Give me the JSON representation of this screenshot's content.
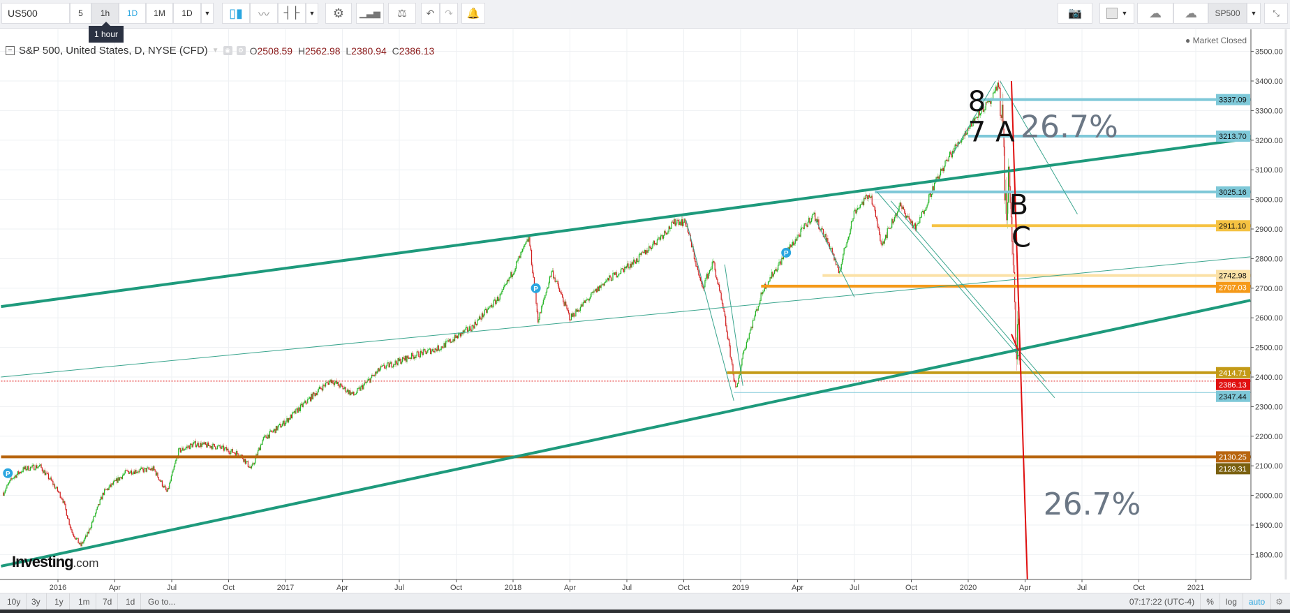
{
  "toolbar": {
    "symbol": "US500",
    "intervals": [
      "5",
      "1h",
      "1D",
      "1M",
      "1D"
    ],
    "tooltip": "1 hour",
    "saved_chart": "SP500",
    "icons": [
      "candles-icon",
      "line-chart-icon",
      "bars-icon",
      "gear-icon",
      "indicators-icon",
      "scale-icon",
      "undo-icon",
      "redo-icon",
      "alert-icon",
      "camera-icon",
      "color-swatch-icon",
      "cloud-download-icon",
      "cloud-upload-icon",
      "fullscreen-icon"
    ]
  },
  "header": {
    "title": "S&P 500, United States, D, NYSE (CFD)",
    "open_label": "O",
    "open": "2508.59",
    "high_label": "H",
    "high": "2562.98",
    "low_label": "L",
    "low": "2380.94",
    "close_label": "C",
    "close": "2386.13",
    "market_status": "Market Closed"
  },
  "logo": {
    "main": "Investing",
    "suffix": ".com"
  },
  "bottombar": {
    "ranges": [
      "10y",
      "3y",
      "1y",
      "1m",
      "7d",
      "1d",
      "Go to..."
    ],
    "time": "07:17:22 (UTC-4)",
    "percent": "%",
    "log": "log",
    "auto": "auto"
  },
  "colors": {
    "up": "#22b322",
    "down": "#d11f1f",
    "channel": "#1e9a7c",
    "thin": "#3aa58e",
    "red_line": "#e01010",
    "accent": "#2aa6e0"
  },
  "chart_data": {
    "type": "line",
    "title": "S&P 500, United States, D, NYSE (CFD)",
    "ylim": [
      1716,
      3575
    ],
    "xlim": [
      2015.75,
      2021.24
    ],
    "y_ticks": [
      1800,
      1900,
      2000,
      2100,
      2200,
      2300,
      2400,
      2500,
      2600,
      2700,
      2800,
      2900,
      3000,
      3100,
      3200,
      3300,
      3400,
      3500
    ],
    "x_start": 2016,
    "x_step": 0.25,
    "x_tick_labels": [
      "2016",
      "Apr",
      "Jul",
      "Oct",
      "2017",
      "Apr",
      "Jul",
      "Oct",
      "2018",
      "Apr",
      "Jul",
      "Oct",
      "2019",
      "Apr",
      "Jul",
      "Oct",
      "2020",
      "Apr",
      "Jul",
      "Oct",
      "2021"
    ],
    "price_path": [
      [
        2015.76,
        2010
      ],
      [
        2015.8,
        2060
      ],
      [
        2015.85,
        2090
      ],
      [
        2015.92,
        2100
      ],
      [
        2015.97,
        2050
      ],
      [
        2016.02,
        1990
      ],
      [
        2016.06,
        1880
      ],
      [
        2016.1,
        1830
      ],
      [
        2016.13,
        1870
      ],
      [
        2016.2,
        2010
      ],
      [
        2016.3,
        2080
      ],
      [
        2016.42,
        2090
      ],
      [
        2016.48,
        2010
      ],
      [
        2016.53,
        2150
      ],
      [
        2016.6,
        2175
      ],
      [
        2016.7,
        2165
      ],
      [
        2016.8,
        2140
      ],
      [
        2016.85,
        2090
      ],
      [
        2016.9,
        2190
      ],
      [
        2017.0,
        2250
      ],
      [
        2017.15,
        2360
      ],
      [
        2017.2,
        2390
      ],
      [
        2017.3,
        2340
      ],
      [
        2017.42,
        2430
      ],
      [
        2017.55,
        2470
      ],
      [
        2017.68,
        2500
      ],
      [
        2017.82,
        2570
      ],
      [
        2017.95,
        2680
      ],
      [
        2018.07,
        2870
      ],
      [
        2018.11,
        2590
      ],
      [
        2018.17,
        2760
      ],
      [
        2018.25,
        2600
      ],
      [
        2018.4,
        2720
      ],
      [
        2018.55,
        2800
      ],
      [
        2018.72,
        2930
      ],
      [
        2018.76,
        2920
      ],
      [
        2018.83,
        2700
      ],
      [
        2018.88,
        2790
      ],
      [
        2018.93,
        2600
      ],
      [
        2018.98,
        2350
      ],
      [
        2019.01,
        2480
      ],
      [
        2019.1,
        2700
      ],
      [
        2019.2,
        2820
      ],
      [
        2019.32,
        2950
      ],
      [
        2019.4,
        2830
      ],
      [
        2019.43,
        2750
      ],
      [
        2019.5,
        2960
      ],
      [
        2019.57,
        3020
      ],
      [
        2019.62,
        2850
      ],
      [
        2019.7,
        2980
      ],
      [
        2019.77,
        2900
      ],
      [
        2019.85,
        3050
      ],
      [
        2019.92,
        3150
      ],
      [
        2020.0,
        3240
      ],
      [
        2020.05,
        3300
      ],
      [
        2020.1,
        3330
      ],
      [
        2020.135,
        3390
      ],
      [
        2020.15,
        3300
      ],
      [
        2020.16,
        3050
      ],
      [
        2020.17,
        2960
      ],
      [
        2020.18,
        3100
      ],
      [
        2020.19,
        2870
      ],
      [
        2020.2,
        2720
      ],
      [
        2020.21,
        2480
      ],
      [
        2020.22,
        2600
      ],
      [
        2020.225,
        2386
      ]
    ],
    "levels": [
      {
        "price": 3337.09,
        "label": "3337.09",
        "from": 2020.04,
        "color": "#7ec8d8",
        "text": "#111"
      },
      {
        "price": 3213.7,
        "label": "3213.70",
        "from": 2020.0,
        "color": "#7ec8d8",
        "text": "#111"
      },
      {
        "price": 3025.16,
        "label": "3025.16",
        "from": 2019.59,
        "color": "#7ec8d8",
        "text": "#111"
      },
      {
        "price": 2911.1,
        "label": "2911.10",
        "from": 2019.84,
        "color": "#f5c242",
        "text": "#111"
      },
      {
        "price": 2742.98,
        "label": "2742.98",
        "from": 2019.36,
        "color": "#fbe1a6",
        "text": "#111"
      },
      {
        "price": 2707.03,
        "label": "2707.03",
        "from": 2019.09,
        "color": "#f59a1a",
        "text": "#fff"
      },
      {
        "price": 2414.71,
        "label": "2414.71",
        "from": 2018.94,
        "color": "#c39a17",
        "text": "#fff"
      },
      {
        "price": 2347.44,
        "label": "2347.44",
        "from": 2018.97,
        "color": "#7ec8d8",
        "text": "#111",
        "thin": true
      },
      {
        "price": 2130.25,
        "label": "2130.25",
        "from": 2015.75,
        "color": "#b8650f",
        "text": "#fff"
      },
      {
        "price": 2129.31,
        "label": "2129.31",
        "from": 2015.75,
        "color": "#7a6010",
        "text": "#fff",
        "nolinerender": true
      },
      {
        "price": 2386.13,
        "label": "2386.13",
        "from": 2015.75,
        "color": "#e01010",
        "text": "#fff",
        "dotted": true
      }
    ],
    "trendlines": [
      {
        "p1": [
          2015.75,
          2638
        ],
        "p2": [
          2021.24,
          3206
        ],
        "style": "thick"
      },
      {
        "p1": [
          2015.75,
          1761
        ],
        "p2": [
          2021.24,
          2659
        ],
        "style": "thick"
      },
      {
        "p1": [
          2015.75,
          2400
        ],
        "p2": [
          2021.24,
          2806
        ],
        "style": "thin"
      },
      {
        "p1": [
          2020.14,
          3400
        ],
        "p2": [
          2020.48,
          2950
        ],
        "style": "thin"
      },
      {
        "p1": [
          2019.93,
          3150
        ],
        "p2": [
          2020.12,
          3400
        ],
        "style": "thin"
      },
      {
        "p1": [
          2019.6,
          3025
        ],
        "p2": [
          2020.38,
          2330
        ],
        "style": "thin"
      },
      {
        "p1": [
          2019.66,
          2995
        ],
        "p2": [
          2020.34,
          2385
        ],
        "style": "thin"
      },
      {
        "p1": [
          2018.76,
          2930
        ],
        "p2": [
          2018.97,
          2320
        ],
        "style": "thin"
      },
      {
        "p1": [
          2018.93,
          2780
        ],
        "p2": [
          2019.01,
          2370
        ],
        "style": "thin"
      },
      {
        "p1": [
          2019.33,
          2930
        ],
        "p2": [
          2019.5,
          2670
        ],
        "style": "thin"
      },
      {
        "p1": [
          2020.19,
          3400
        ],
        "p2": [
          2020.26,
          1716
        ],
        "style": "red"
      },
      {
        "p1": [
          2020.19,
          2545
        ],
        "p2": [
          2020.22,
          2490
        ],
        "style": "red"
      }
    ],
    "annotations": [
      {
        "text": "8",
        "t": 2020.085,
        "p": 3280,
        "kind": "letter"
      },
      {
        "text": "7",
        "t": 2020.085,
        "p": 3215,
        "kind": "letter"
      },
      {
        "text": "A",
        "t": 2020.12,
        "p": 3215,
        "kind": "letter"
      },
      {
        "text": "26.7%",
        "t": 2020.23,
        "p": 3210,
        "kind": "pct"
      },
      {
        "text": "B",
        "t": 2020.18,
        "p": 2950,
        "kind": "letter"
      },
      {
        "text": "C",
        "t": 2020.19,
        "p": 2840,
        "kind": "letter"
      },
      {
        "text": "26.7%",
        "t": 2020.33,
        "p": 1935,
        "kind": "pct"
      }
    ],
    "markers": [
      {
        "text": "P",
        "t": 2015.78,
        "p": 2075
      },
      {
        "text": "P",
        "t": 2018.1,
        "p": 2700
      },
      {
        "text": "P",
        "t": 2019.2,
        "p": 2820
      }
    ]
  }
}
